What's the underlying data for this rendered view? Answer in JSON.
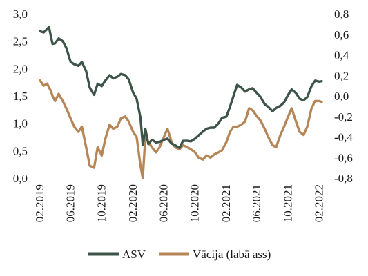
{
  "chart_data": {
    "type": "line",
    "x_ticks": [
      "02.2019",
      "06.2019",
      "10.2019",
      "02.2020",
      "06.2020",
      "10.2020",
      "02.2021",
      "06.2021",
      "10.2021",
      "02.2022"
    ],
    "y_left": {
      "min": 0,
      "max": 3,
      "ticks": [
        "0,0",
        "0,5",
        "1,0",
        "1,5",
        "2,0",
        "2,5",
        "3,0"
      ]
    },
    "y_right": {
      "min": -0.8,
      "max": 0.8,
      "ticks": [
        "-0,8",
        "-0,6",
        "-0,4",
        "-0,2",
        "0,0",
        "0,2",
        "0,4",
        "0,6",
        "0,8"
      ]
    },
    "grid": false,
    "legend_position": "bottom",
    "series": [
      {
        "name": "ASV",
        "axis": "left",
        "color": "#3f5449",
        "points": [
          [
            "2019-02-01",
            2.68
          ],
          [
            "2019-02-15",
            2.66
          ],
          [
            "2019-03-01",
            2.72
          ],
          [
            "2019-03-08",
            2.76
          ],
          [
            "2019-03-15",
            2.6
          ],
          [
            "2019-03-22",
            2.45
          ],
          [
            "2019-04-01",
            2.46
          ],
          [
            "2019-04-15",
            2.55
          ],
          [
            "2019-05-01",
            2.5
          ],
          [
            "2019-05-15",
            2.38
          ],
          [
            "2019-06-01",
            2.12
          ],
          [
            "2019-06-15",
            2.08
          ],
          [
            "2019-07-01",
            2.05
          ],
          [
            "2019-07-15",
            2.12
          ],
          [
            "2019-08-01",
            1.95
          ],
          [
            "2019-08-15",
            1.65
          ],
          [
            "2019-09-01",
            1.52
          ],
          [
            "2019-09-15",
            1.72
          ],
          [
            "2019-10-01",
            1.68
          ],
          [
            "2019-10-15",
            1.78
          ],
          [
            "2019-11-01",
            1.88
          ],
          [
            "2019-11-15",
            1.82
          ],
          [
            "2019-12-01",
            1.85
          ],
          [
            "2019-12-15",
            1.9
          ],
          [
            "2020-01-01",
            1.88
          ],
          [
            "2020-01-15",
            1.8
          ],
          [
            "2020-02-01",
            1.56
          ],
          [
            "2020-02-15",
            1.45
          ],
          [
            "2020-03-01",
            1.1
          ],
          [
            "2020-03-10",
            0.6
          ],
          [
            "2020-03-20",
            0.9
          ],
          [
            "2020-04-01",
            0.62
          ],
          [
            "2020-04-15",
            0.7
          ],
          [
            "2020-05-01",
            0.65
          ],
          [
            "2020-05-15",
            0.66
          ],
          [
            "2020-06-01",
            0.7
          ],
          [
            "2020-06-15",
            0.72
          ],
          [
            "2020-07-01",
            0.63
          ],
          [
            "2020-07-15",
            0.6
          ],
          [
            "2020-08-01",
            0.55
          ],
          [
            "2020-08-15",
            0.68
          ],
          [
            "2020-09-01",
            0.68
          ],
          [
            "2020-09-15",
            0.67
          ],
          [
            "2020-10-01",
            0.72
          ],
          [
            "2020-10-15",
            0.78
          ],
          [
            "2020-11-01",
            0.85
          ],
          [
            "2020-11-15",
            0.9
          ],
          [
            "2020-12-01",
            0.92
          ],
          [
            "2020-12-15",
            0.92
          ],
          [
            "2021-01-01",
            1.0
          ],
          [
            "2021-01-15",
            1.1
          ],
          [
            "2021-02-01",
            1.12
          ],
          [
            "2021-02-15",
            1.3
          ],
          [
            "2021-03-01",
            1.5
          ],
          [
            "2021-03-15",
            1.7
          ],
          [
            "2021-04-01",
            1.65
          ],
          [
            "2021-04-15",
            1.58
          ],
          [
            "2021-05-01",
            1.62
          ],
          [
            "2021-05-15",
            1.64
          ],
          [
            "2021-06-01",
            1.55
          ],
          [
            "2021-06-15",
            1.48
          ],
          [
            "2021-07-01",
            1.35
          ],
          [
            "2021-07-15",
            1.3
          ],
          [
            "2021-08-01",
            1.22
          ],
          [
            "2021-08-15",
            1.28
          ],
          [
            "2021-09-01",
            1.32
          ],
          [
            "2021-09-15",
            1.38
          ],
          [
            "2021-10-01",
            1.52
          ],
          [
            "2021-10-15",
            1.62
          ],
          [
            "2021-11-01",
            1.55
          ],
          [
            "2021-11-15",
            1.45
          ],
          [
            "2021-12-01",
            1.42
          ],
          [
            "2021-12-15",
            1.48
          ],
          [
            "2022-01-01",
            1.68
          ],
          [
            "2022-01-15",
            1.78
          ],
          [
            "2022-02-01",
            1.76
          ],
          [
            "2022-02-10",
            1.77
          ]
        ]
      },
      {
        "name": "Vācija (labā ass)",
        "axis": "right",
        "color": "#b58657",
        "points": [
          [
            "2019-02-01",
            0.15
          ],
          [
            "2019-02-15",
            0.1
          ],
          [
            "2019-03-01",
            0.12
          ],
          [
            "2019-03-15",
            0.05
          ],
          [
            "2019-03-22",
            0.0
          ],
          [
            "2019-04-01",
            -0.05
          ],
          [
            "2019-04-15",
            0.02
          ],
          [
            "2019-05-01",
            -0.05
          ],
          [
            "2019-05-15",
            -0.12
          ],
          [
            "2019-06-01",
            -0.22
          ],
          [
            "2019-06-15",
            -0.3
          ],
          [
            "2019-07-01",
            -0.35
          ],
          [
            "2019-07-15",
            -0.3
          ],
          [
            "2019-08-01",
            -0.5
          ],
          [
            "2019-08-15",
            -0.68
          ],
          [
            "2019-09-01",
            -0.7
          ],
          [
            "2019-09-15",
            -0.5
          ],
          [
            "2019-10-01",
            -0.58
          ],
          [
            "2019-10-15",
            -0.42
          ],
          [
            "2019-11-01",
            -0.28
          ],
          [
            "2019-11-15",
            -0.32
          ],
          [
            "2019-12-01",
            -0.3
          ],
          [
            "2019-12-15",
            -0.22
          ],
          [
            "2020-01-01",
            -0.2
          ],
          [
            "2020-01-15",
            -0.25
          ],
          [
            "2020-02-01",
            -0.35
          ],
          [
            "2020-02-15",
            -0.4
          ],
          [
            "2020-03-01",
            -0.68
          ],
          [
            "2020-03-10",
            -0.8
          ],
          [
            "2020-03-20",
            -0.4
          ],
          [
            "2020-04-01",
            -0.45
          ],
          [
            "2020-04-15",
            -0.5
          ],
          [
            "2020-05-01",
            -0.55
          ],
          [
            "2020-05-15",
            -0.5
          ],
          [
            "2020-06-01",
            -0.4
          ],
          [
            "2020-06-15",
            -0.32
          ],
          [
            "2020-07-01",
            -0.45
          ],
          [
            "2020-07-15",
            -0.5
          ],
          [
            "2020-08-01",
            -0.52
          ],
          [
            "2020-08-15",
            -0.48
          ],
          [
            "2020-09-01",
            -0.5
          ],
          [
            "2020-09-15",
            -0.52
          ],
          [
            "2020-10-01",
            -0.55
          ],
          [
            "2020-10-15",
            -0.6
          ],
          [
            "2020-11-01",
            -0.62
          ],
          [
            "2020-11-15",
            -0.58
          ],
          [
            "2020-12-01",
            -0.6
          ],
          [
            "2020-12-15",
            -0.57
          ],
          [
            "2021-01-01",
            -0.55
          ],
          [
            "2021-01-15",
            -0.53
          ],
          [
            "2021-02-01",
            -0.45
          ],
          [
            "2021-02-15",
            -0.35
          ],
          [
            "2021-03-01",
            -0.3
          ],
          [
            "2021-03-15",
            -0.3
          ],
          [
            "2021-04-01",
            -0.28
          ],
          [
            "2021-04-15",
            -0.25
          ],
          [
            "2021-05-01",
            -0.12
          ],
          [
            "2021-05-15",
            -0.14
          ],
          [
            "2021-06-01",
            -0.2
          ],
          [
            "2021-06-15",
            -0.24
          ],
          [
            "2021-07-01",
            -0.32
          ],
          [
            "2021-07-15",
            -0.4
          ],
          [
            "2021-08-01",
            -0.48
          ],
          [
            "2021-08-15",
            -0.5
          ],
          [
            "2021-09-01",
            -0.38
          ],
          [
            "2021-09-15",
            -0.3
          ],
          [
            "2021-10-01",
            -0.2
          ],
          [
            "2021-10-15",
            -0.12
          ],
          [
            "2021-11-01",
            -0.25
          ],
          [
            "2021-11-15",
            -0.35
          ],
          [
            "2021-12-01",
            -0.38
          ],
          [
            "2021-12-15",
            -0.3
          ],
          [
            "2022-01-01",
            -0.12
          ],
          [
            "2022-01-15",
            -0.05
          ],
          [
            "2022-02-01",
            -0.05
          ],
          [
            "2022-02-10",
            -0.06
          ]
        ]
      }
    ]
  }
}
